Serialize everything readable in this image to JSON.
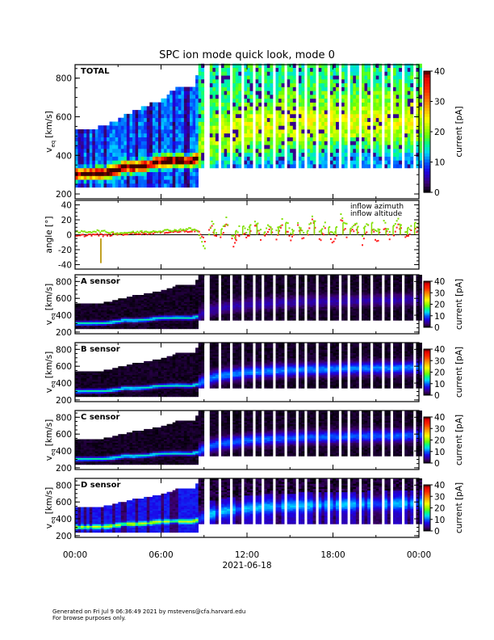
{
  "title": "SPC ion mode quick look, mode 0",
  "footer": {
    "line1": "Generated on Fri Jul  9 06:36:49 2021 by mstevens@cfa.harvard.edu",
    "line2": "For browse purposes only."
  },
  "xaxis": {
    "ticks": [
      "00:00",
      "06:00",
      "12:00",
      "18:00",
      "00:00"
    ],
    "tick_hours": [
      0,
      6,
      12,
      18,
      24
    ],
    "date_label": "2021-06-18",
    "range_hours": [
      0,
      24
    ]
  },
  "colorbar": {
    "label": "current [pA]",
    "ticks_total": [
      "0",
      "10",
      "20",
      "30",
      "40"
    ],
    "ticks_sensor": [
      "0",
      "10",
      "20",
      "30",
      "40"
    ],
    "range": [
      0,
      40
    ]
  },
  "chart_data": [
    {
      "type": "heatmap",
      "panel": "total",
      "label": "TOTAL",
      "ylabel": "v",
      "ylabel_sub": "eq",
      "ylabel_unit": "[km/s]",
      "yticks": [
        "200",
        "400",
        "600",
        "800"
      ],
      "ylim": [
        175,
        870
      ],
      "peak_early": 35,
      "peak_late": 20,
      "background_early": 8,
      "background_late": 13
    },
    {
      "type": "scatter",
      "panel": "angle",
      "ylabel": "angle [°]",
      "yticks": [
        "-40",
        "-20",
        "0",
        "20",
        "40"
      ],
      "ylim": [
        -46,
        46
      ],
      "legend": [
        {
          "name": "inflow azimuth",
          "color": "#ff2020"
        },
        {
          "name": "inflow altitude",
          "color": "#80e000"
        }
      ],
      "x_step_hours": 0.5,
      "azimuth": [
        -2,
        -1,
        0,
        0,
        -1,
        0,
        1,
        1,
        2,
        2,
        2,
        3,
        3,
        4,
        4,
        5,
        5,
        6,
        -8,
        10,
        -10,
        15,
        -12,
        5,
        -5,
        15,
        -10,
        10,
        -8,
        15,
        -5,
        12,
        -10,
        18,
        -8,
        10,
        -12,
        20,
        -5,
        12,
        -10,
        15,
        -8,
        10,
        -6,
        12,
        -5,
        10,
        5
      ],
      "altitude": [
        3,
        4,
        4,
        5,
        4,
        3,
        2,
        3,
        3,
        4,
        4,
        5,
        5,
        6,
        6,
        7,
        8,
        5,
        -20,
        15,
        0,
        20,
        -5,
        12,
        5,
        20,
        0,
        15,
        5,
        22,
        5,
        15,
        0,
        22,
        5,
        18,
        0,
        25,
        8,
        15,
        2,
        20,
        5,
        15,
        5,
        18,
        5,
        15,
        10
      ]
    },
    {
      "type": "heatmap",
      "panel": "A",
      "label": "A sensor",
      "ylabel": "v",
      "ylabel_sub": "eq",
      "ylabel_unit": "[km/s]",
      "yticks": [
        "200",
        "400",
        "600",
        "800"
      ],
      "ylim": [
        180,
        880
      ],
      "peak_early": 14,
      "peak_late": 4,
      "background_early": 0.3,
      "background_late": 0.3
    },
    {
      "type": "heatmap",
      "panel": "B",
      "label": "B sensor",
      "ylabel": "v",
      "ylabel_sub": "eq",
      "ylabel_unit": "[km/s]",
      "yticks": [
        "200",
        "400",
        "600",
        "800"
      ],
      "ylim": [
        180,
        880
      ],
      "peak_early": 14,
      "peak_late": 10,
      "background_early": 0.3,
      "background_late": 0.3
    },
    {
      "type": "heatmap",
      "panel": "C",
      "label": "C sensor",
      "ylabel": "v",
      "ylabel_sub": "eq",
      "ylabel_unit": "[km/s]",
      "yticks": [
        "200",
        "400",
        "600",
        "800"
      ],
      "ylim": [
        180,
        880
      ],
      "peak_early": 14,
      "peak_late": 9,
      "background_early": 0.3,
      "background_late": 0.3
    },
    {
      "type": "heatmap",
      "panel": "D",
      "label": "D sensor",
      "ylabel": "v",
      "ylabel_sub": "eq",
      "ylabel_unit": "[km/s]",
      "yticks": [
        "200",
        "400",
        "600",
        "800"
      ],
      "ylim": [
        180,
        880
      ],
      "peak_early": 15,
      "peak_late": 7,
      "background_early": 7,
      "background_late": 5
    }
  ],
  "core_velocity": [
    [
      0,
      295
    ],
    [
      2,
      300
    ],
    [
      3,
      320
    ],
    [
      3.3,
      335
    ],
    [
      4,
      330
    ],
    [
      5,
      340
    ],
    [
      5.5,
      355
    ],
    [
      6,
      360
    ],
    [
      7,
      365
    ],
    [
      8,
      360
    ],
    [
      8.5,
      380
    ],
    [
      9,
      430
    ],
    [
      10,
      480
    ],
    [
      12,
      520
    ],
    [
      14,
      540
    ],
    [
      16,
      555
    ],
    [
      18,
      560
    ],
    [
      20,
      570
    ],
    [
      22,
      570
    ],
    [
      24,
      580
    ]
  ],
  "upper_envelope": [
    [
      0,
      520
    ],
    [
      2,
      540
    ],
    [
      3,
      580
    ],
    [
      4,
      620
    ],
    [
      5,
      650
    ],
    [
      6,
      680
    ],
    [
      7,
      740
    ],
    [
      8.3,
      740
    ],
    [
      8.5,
      880
    ],
    [
      24,
      880
    ]
  ],
  "lower_envelope": [
    [
      0,
      230
    ],
    [
      8.4,
      230
    ],
    [
      8.5,
      330
    ],
    [
      24,
      330
    ]
  ],
  "data_gaps_hours": [
    [
      9.1,
      9.3
    ],
    [
      9.9,
      10.1
    ],
    [
      10.7,
      10.9
    ],
    [
      11.5,
      11.7
    ],
    [
      12.3,
      12.5
    ],
    [
      13.0,
      13.2
    ],
    [
      13.8,
      14.0
    ],
    [
      14.5,
      14.7
    ],
    [
      15.3,
      15.5
    ],
    [
      16.0,
      16.2
    ],
    [
      16.8,
      17.0
    ],
    [
      17.5,
      17.7
    ],
    [
      18.3,
      18.5
    ],
    [
      19.0,
      19.2
    ],
    [
      19.8,
      20.0
    ],
    [
      20.5,
      20.7
    ],
    [
      21.3,
      21.5
    ],
    [
      22.0,
      22.2
    ],
    [
      22.8,
      23.0
    ],
    [
      23.5,
      23.7
    ]
  ]
}
